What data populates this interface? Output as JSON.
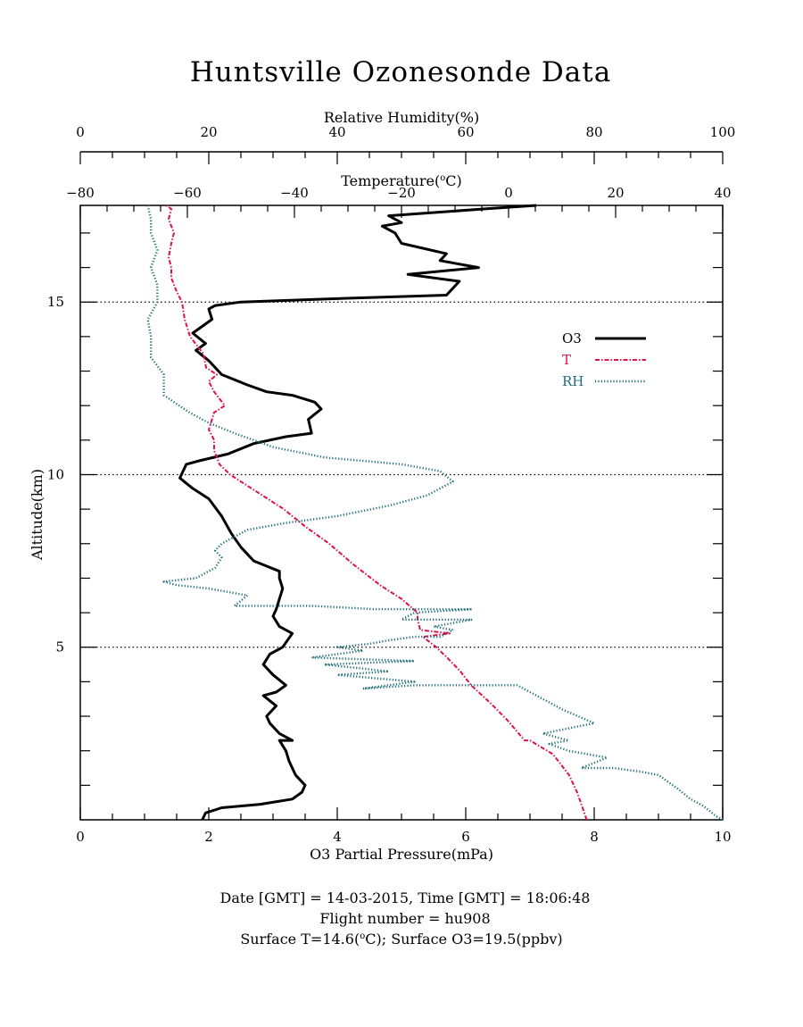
{
  "title": "Huntsville Ozonesonde Data",
  "footer": {
    "date_label": "Date [GMT] = ",
    "date": "14-03-2015",
    "time_label": ",  Time [GMT] = ",
    "time": "18:06:48",
    "flight_label": "Flight number = ",
    "flight": "hu908",
    "surface_t_label": "Surface T=",
    "surface_t": "14.6",
    "surface_t_unit_pre": "(",
    "surface_t_unit_sup": "o",
    "surface_t_unit_post": "C); ",
    "surface_o3_label": "Surface O3=",
    "surface_o3": "19.5",
    "surface_o3_unit": "(ppbv)"
  },
  "chart_data": {
    "type": "line",
    "title": "Huntsville Ozonesonde Data",
    "grid": "dotted horizontal at 5, 10, 15 km",
    "legend_placement": "right, upper-middle",
    "axes": {
      "y": {
        "label": "Altitude(km)",
        "range": [
          0,
          17.8
        ],
        "ticks": [
          5,
          10,
          15
        ],
        "tick_labels": [
          "5",
          "10",
          "15"
        ]
      },
      "x_o3": {
        "label": "O3 Partial Pressure(mPa)",
        "range": [
          0,
          10
        ],
        "ticks": [
          0,
          2,
          4,
          6,
          8,
          10
        ],
        "tick_labels": [
          "0",
          "2",
          "4",
          "6",
          "8",
          "10"
        ]
      },
      "x_t": {
        "label_pre": "Temperature(",
        "label_sup": "o",
        "label_post": "C)",
        "range": [
          -80,
          40
        ],
        "ticks": [
          -80,
          -60,
          -40,
          -20,
          0,
          20,
          40
        ],
        "tick_labels": [
          "−80",
          "−60",
          "−40",
          "−20",
          "0",
          "20",
          "40"
        ]
      },
      "x_rh": {
        "label": "Relative Humidity(%)",
        "range": [
          0,
          100
        ],
        "ticks": [
          0,
          20,
          40,
          60,
          80,
          100
        ],
        "tick_labels": [
          "0",
          "20",
          "40",
          "60",
          "80",
          "100"
        ]
      }
    },
    "series": [
      {
        "name": "O3",
        "color": "#000000",
        "axis": "x_o3",
        "style": "solid",
        "points": [
          [
            1.9,
            0
          ],
          [
            1.95,
            0.2
          ],
          [
            2.2,
            0.35
          ],
          [
            2.8,
            0.45
          ],
          [
            3.3,
            0.6
          ],
          [
            3.45,
            0.8
          ],
          [
            3.5,
            1.0
          ],
          [
            3.35,
            1.3
          ],
          [
            3.25,
            1.7
          ],
          [
            3.2,
            2.0
          ],
          [
            3.1,
            2.3
          ],
          [
            3.3,
            2.3
          ],
          [
            3.1,
            2.5
          ],
          [
            2.95,
            2.8
          ],
          [
            2.9,
            3.0
          ],
          [
            3.05,
            3.3
          ],
          [
            2.85,
            3.6
          ],
          [
            3.05,
            3.7
          ],
          [
            3.2,
            3.9
          ],
          [
            3.0,
            4.2
          ],
          [
            2.85,
            4.5
          ],
          [
            2.95,
            4.8
          ],
          [
            3.15,
            5.0
          ],
          [
            3.3,
            5.4
          ],
          [
            3.1,
            5.6
          ],
          [
            3.0,
            5.9
          ],
          [
            3.05,
            6.1
          ],
          [
            3.1,
            6.4
          ],
          [
            3.15,
            6.7
          ],
          [
            3.1,
            7.0
          ],
          [
            3.1,
            7.2
          ],
          [
            2.7,
            7.5
          ],
          [
            2.5,
            7.9
          ],
          [
            2.35,
            8.3
          ],
          [
            2.2,
            8.8
          ],
          [
            2.0,
            9.3
          ],
          [
            1.75,
            9.6
          ],
          [
            1.55,
            9.9
          ],
          [
            1.65,
            10.3
          ],
          [
            1.85,
            10.4
          ],
          [
            2.3,
            10.6
          ],
          [
            2.7,
            10.9
          ],
          [
            3.2,
            11.1
          ],
          [
            3.6,
            11.2
          ],
          [
            3.55,
            11.6
          ],
          [
            3.75,
            11.9
          ],
          [
            3.65,
            12.1
          ],
          [
            3.3,
            12.3
          ],
          [
            2.9,
            12.4
          ],
          [
            2.6,
            12.6
          ],
          [
            2.2,
            12.9
          ],
          [
            2.0,
            13.3
          ],
          [
            1.8,
            13.6
          ],
          [
            1.95,
            13.8
          ],
          [
            1.75,
            14.1
          ],
          [
            2.05,
            14.5
          ],
          [
            2.0,
            14.8
          ],
          [
            2.1,
            14.9
          ],
          [
            2.5,
            15.0
          ],
          [
            4.0,
            15.1
          ],
          [
            5.7,
            15.2
          ],
          [
            5.9,
            15.6
          ],
          [
            5.1,
            15.8
          ],
          [
            6.2,
            16.0
          ],
          [
            5.6,
            16.2
          ],
          [
            5.7,
            16.4
          ],
          [
            5.0,
            16.7
          ],
          [
            4.9,
            17.0
          ],
          [
            4.7,
            17.2
          ],
          [
            5.0,
            17.3
          ],
          [
            4.8,
            17.5
          ],
          [
            6.3,
            17.7
          ],
          [
            7.1,
            17.8
          ]
        ]
      },
      {
        "name": "T",
        "color": "#e0104a",
        "axis": "x_t",
        "style": "dash-dot",
        "points": [
          [
            14.6,
            0
          ],
          [
            13.7,
            0.4
          ],
          [
            12.8,
            0.8
          ],
          [
            11.3,
            1.3
          ],
          [
            8.3,
            1.9
          ],
          [
            4.0,
            2.3
          ],
          [
            3.0,
            2.3
          ],
          [
            -0.3,
            2.9
          ],
          [
            -3.5,
            3.4
          ],
          [
            -7.0,
            3.9
          ],
          [
            -9.0,
            4.3
          ],
          [
            -11.5,
            4.7
          ],
          [
            -13.5,
            5.0
          ],
          [
            -16.0,
            5.3
          ],
          [
            -11.0,
            5.4
          ],
          [
            -16.5,
            5.5
          ],
          [
            -17.0,
            5.8
          ],
          [
            -17.0,
            6.0
          ],
          [
            -20.0,
            6.4
          ],
          [
            -24.0,
            6.8
          ],
          [
            -29.0,
            7.4
          ],
          [
            -33.5,
            8.0
          ],
          [
            -38.0,
            8.5
          ],
          [
            -42.0,
            9.0
          ],
          [
            -47.0,
            9.5
          ],
          [
            -52.0,
            10.0
          ],
          [
            -54.0,
            10.3
          ],
          [
            -55.0,
            10.7
          ],
          [
            -55.0,
            11.0
          ],
          [
            -56.0,
            11.3
          ],
          [
            -55.0,
            11.8
          ],
          [
            -53.0,
            12.0
          ],
          [
            -55.0,
            12.4
          ],
          [
            -56.0,
            12.7
          ],
          [
            -54.5,
            12.9
          ],
          [
            -56.5,
            13.1
          ],
          [
            -57.0,
            13.5
          ],
          [
            -59.5,
            14.0
          ],
          [
            -60.5,
            14.5
          ],
          [
            -61.0,
            15.0
          ],
          [
            -62.0,
            15.3
          ],
          [
            -63.0,
            15.7
          ],
          [
            -63.0,
            16.0
          ],
          [
            -63.5,
            16.3
          ],
          [
            -63.0,
            16.7
          ],
          [
            -62.5,
            17.0
          ],
          [
            -63.5,
            17.4
          ],
          [
            -63.0,
            17.7
          ],
          [
            -64.0,
            17.8
          ]
        ]
      },
      {
        "name": "RH",
        "color": "#1f6e78",
        "axis": "x_rh",
        "style": "dotted",
        "points": [
          [
            100,
            0
          ],
          [
            99,
            0.1
          ],
          [
            97,
            0.4
          ],
          [
            95,
            0.6
          ],
          [
            93,
            0.9
          ],
          [
            90,
            1.3
          ],
          [
            87,
            1.4
          ],
          [
            83,
            1.5
          ],
          [
            78,
            1.5
          ],
          [
            82,
            1.8
          ],
          [
            76,
            2.0
          ],
          [
            73,
            2.2
          ],
          [
            76,
            2.3
          ],
          [
            72,
            2.5
          ],
          [
            80,
            2.8
          ],
          [
            75,
            3.2
          ],
          [
            72,
            3.5
          ],
          [
            68,
            3.9
          ],
          [
            52,
            3.9
          ],
          [
            44,
            3.8
          ],
          [
            52,
            4.0
          ],
          [
            46,
            4.1
          ],
          [
            40,
            4.2
          ],
          [
            48,
            4.3
          ],
          [
            43,
            4.4
          ],
          [
            38,
            4.5
          ],
          [
            52,
            4.6
          ],
          [
            36,
            4.7
          ],
          [
            44,
            4.9
          ],
          [
            40,
            5.0
          ],
          [
            45,
            5.1
          ],
          [
            48,
            5.2
          ],
          [
            52,
            5.3
          ],
          [
            56,
            5.3
          ],
          [
            58,
            5.5
          ],
          [
            55,
            5.6
          ],
          [
            61,
            5.8
          ],
          [
            50,
            5.8
          ],
          [
            52,
            6.0
          ],
          [
            61,
            6.1
          ],
          [
            46,
            6.1
          ],
          [
            36,
            6.2
          ],
          [
            24,
            6.2
          ],
          [
            26,
            6.5
          ],
          [
            20,
            6.7
          ],
          [
            15,
            6.8
          ],
          [
            13,
            6.9
          ],
          [
            18,
            7.0
          ],
          [
            21,
            7.3
          ],
          [
            22,
            7.6
          ],
          [
            21,
            7.8
          ],
          [
            22,
            8.0
          ],
          [
            24,
            8.2
          ],
          [
            26,
            8.4
          ],
          [
            32,
            8.6
          ],
          [
            40,
            8.8
          ],
          [
            48,
            9.1
          ],
          [
            54,
            9.4
          ],
          [
            58,
            9.8
          ],
          [
            56,
            10.1
          ],
          [
            50,
            10.3
          ],
          [
            38,
            10.5
          ],
          [
            30,
            10.8
          ],
          [
            24,
            11.2
          ],
          [
            20,
            11.5
          ],
          [
            17,
            11.8
          ],
          [
            13,
            12.3
          ],
          [
            13,
            12.9
          ],
          [
            11,
            13.4
          ],
          [
            11,
            14.0
          ],
          [
            10.5,
            14.5
          ],
          [
            12,
            15.0
          ],
          [
            12,
            15.5
          ],
          [
            11,
            16.0
          ],
          [
            12,
            16.5
          ],
          [
            11,
            17.0
          ],
          [
            11,
            17.4
          ],
          [
            10.5,
            17.8
          ]
        ]
      }
    ],
    "legend": [
      {
        "label": "O3",
        "color": "#000000",
        "style": "solid"
      },
      {
        "label": "T",
        "color": "#e0104a",
        "style": "dash-dot"
      },
      {
        "label": "RH",
        "color": "#1f6e78",
        "style": "dotted"
      }
    ]
  }
}
